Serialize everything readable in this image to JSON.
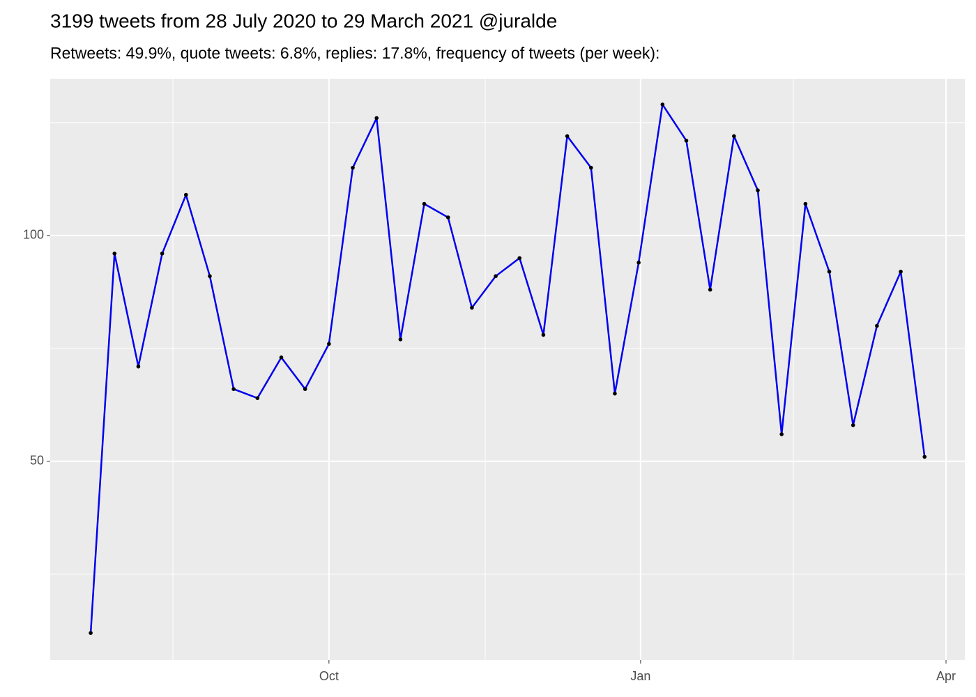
{
  "chart_data": {
    "type": "line",
    "title": "3199 tweets from 28 July 2020 to 29 March 2021 @juralde",
    "subtitle": "Retweets: 49.9%, quote tweets: 6.8%, replies: 17.8%, frequency of tweets (per week):",
    "x": [
      0,
      1,
      2,
      3,
      4,
      5,
      6,
      7,
      8,
      9,
      10,
      11,
      12,
      13,
      14,
      15,
      16,
      17,
      18,
      19,
      20,
      21,
      22,
      23,
      24,
      25,
      26,
      27,
      28,
      29,
      30,
      31,
      32,
      33,
      34,
      35
    ],
    "series": [
      {
        "color": "#0000ee",
        "point_color": "#000000",
        "values": [
          12,
          96,
          71,
          96,
          109,
          91,
          66,
          64,
          73,
          66,
          76,
          115,
          126,
          77,
          107,
          104,
          84,
          91,
          95,
          78,
          122,
          115,
          65,
          94,
          129,
          121,
          88,
          122,
          110,
          56,
          107,
          92,
          58,
          80,
          92,
          51
        ]
      }
    ],
    "xlim": [
      -1.7,
      36.69
    ],
    "xticks": [
      {
        "value": 10,
        "label": "Oct"
      },
      {
        "value": 23.08,
        "label": "Jan"
      },
      {
        "value": 35.9,
        "label": "Apr"
      }
    ],
    "xminor": [
      3.45,
      16.56,
      29.49
    ],
    "ylim": [
      6,
      134.7
    ],
    "yticks": [
      50,
      100
    ],
    "yminor": [
      25,
      75,
      125
    ],
    "grid": true
  }
}
